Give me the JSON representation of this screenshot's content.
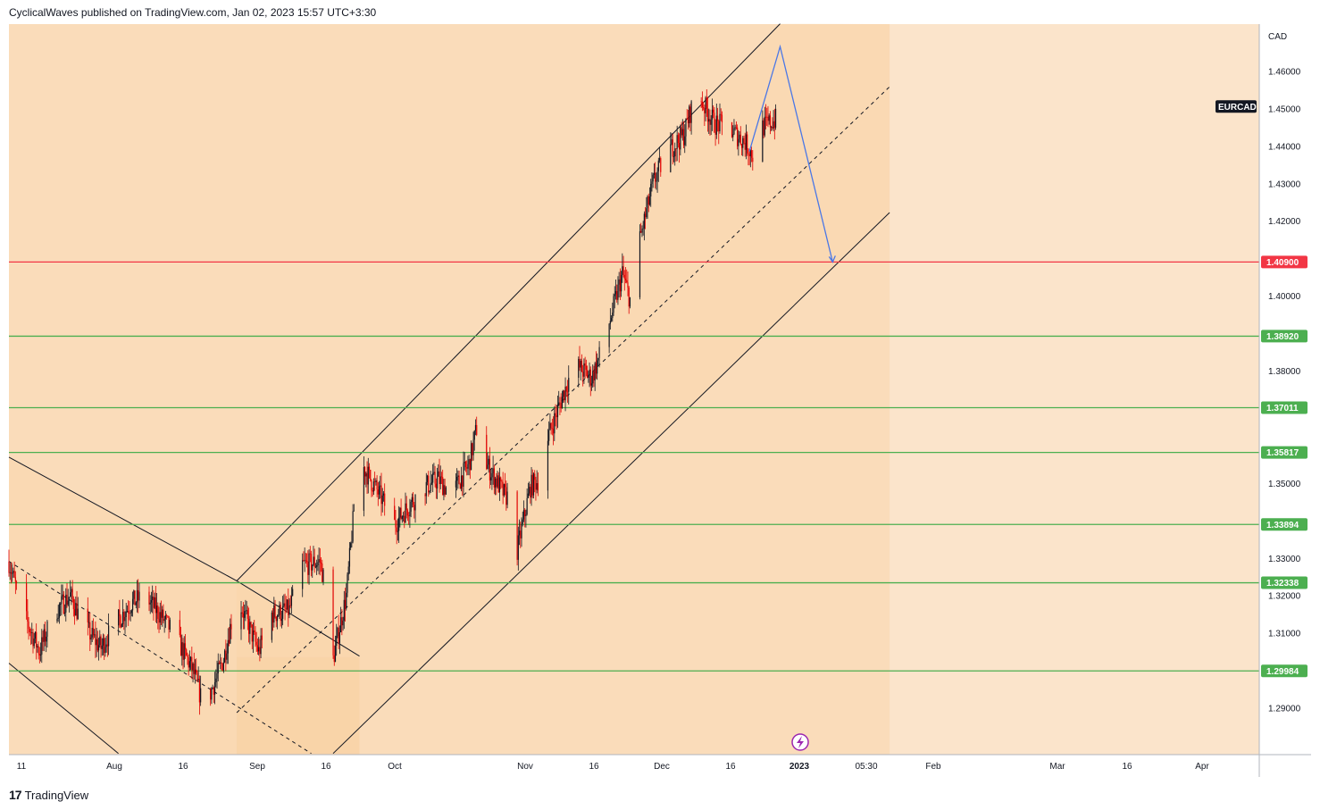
{
  "header": {
    "published": "CyclicalWaves published on TradingView.com, Jan 02, 2023 15:57 UTC+3:30"
  },
  "footer": {
    "logo": "17",
    "brand": "TradingView"
  },
  "colors": {
    "background": "#fbe4cb",
    "shading": "#f9d3a7",
    "red_line": "#f23645",
    "green_line": "#4caf50",
    "candle_up": "#131722",
    "candle_down": "#e00000",
    "projection": "#4a77e6"
  },
  "chart_data": {
    "type": "candlestick",
    "symbol": "EURCAD",
    "currency": "CAD",
    "x_ticks": [
      "11",
      "Aug",
      "16",
      "Sep",
      "16",
      "Oct",
      "Nov",
      "16",
      "Dec",
      "16",
      "2023",
      "05:30",
      "Feb",
      "Mar",
      "16",
      "Apr"
    ],
    "y_ticks": [
      1.29,
      1.31,
      1.32,
      1.33,
      1.35,
      1.38,
      1.4,
      1.42,
      1.43,
      1.44,
      1.45,
      1.46
    ],
    "y_range": [
      1.2775,
      1.4725
    ],
    "horizontal_levels": [
      {
        "value": 1.409,
        "label": "1.40900",
        "color": "red"
      },
      {
        "value": 1.3892,
        "label": "1.38920",
        "color": "green"
      },
      {
        "value": 1.37011,
        "label": "1.37011",
        "color": "green"
      },
      {
        "value": 1.35817,
        "label": "1.35817",
        "color": "green"
      },
      {
        "value": 1.33894,
        "label": "1.33894",
        "color": "green"
      },
      {
        "value": 1.32338,
        "label": "1.32338",
        "color": "green"
      },
      {
        "value": 1.29984,
        "label": "1.29984",
        "color": "green"
      }
    ],
    "price_path": [
      {
        "t": "Jul 11",
        "p": 1.329
      },
      {
        "t": "Jul 14",
        "p": 1.316
      },
      {
        "t": "Jul 18",
        "p": 1.305
      },
      {
        "t": "Jul 21",
        "p": 1.315
      },
      {
        "t": "Jul 25",
        "p": 1.32
      },
      {
        "t": "Jul 28",
        "p": 1.312
      },
      {
        "t": "Aug 01",
        "p": 1.306
      },
      {
        "t": "Aug 04",
        "p": 1.312
      },
      {
        "t": "Aug 08",
        "p": 1.318
      },
      {
        "t": "Aug 11",
        "p": 1.32
      },
      {
        "t": "Aug 15",
        "p": 1.314
      },
      {
        "t": "Aug 18",
        "p": 1.309
      },
      {
        "t": "Aug 22",
        "p": 1.3
      },
      {
        "t": "Aug 24",
        "p": 1.292
      },
      {
        "t": "Aug 26",
        "p": 1.294
      },
      {
        "t": "Aug 29",
        "p": 1.303
      },
      {
        "t": "Sep 01",
        "p": 1.32
      },
      {
        "t": "Sep 06",
        "p": 1.305
      },
      {
        "t": "Sep 09",
        "p": 1.315
      },
      {
        "t": "Sep 13",
        "p": 1.316
      },
      {
        "t": "Sep 16",
        "p": 1.328
      },
      {
        "t": "Sep 20",
        "p": 1.329
      },
      {
        "t": "Sep 22",
        "p": 1.318
      },
      {
        "t": "Sep 23",
        "p": 1.303
      },
      {
        "t": "Sep 26",
        "p": 1.32
      },
      {
        "t": "Sep 28",
        "p": 1.346
      },
      {
        "t": "Sep 30",
        "p": 1.354
      },
      {
        "t": "Oct 04",
        "p": 1.346
      },
      {
        "t": "Oct 07",
        "p": 1.339
      },
      {
        "t": "Oct 11",
        "p": 1.345
      },
      {
        "t": "Oct 14",
        "p": 1.349
      },
      {
        "t": "Oct 17",
        "p": 1.351
      },
      {
        "t": "Oct 20",
        "p": 1.347
      },
      {
        "t": "Oct 24",
        "p": 1.355
      },
      {
        "t": "Oct 26",
        "p": 1.366
      },
      {
        "t": "Oct 28",
        "p": 1.355
      },
      {
        "t": "Nov 01",
        "p": 1.347
      },
      {
        "t": "Nov 03",
        "p": 1.345
      },
      {
        "t": "Nov 04",
        "p": 1.332
      },
      {
        "t": "Nov 07",
        "p": 1.349
      },
      {
        "t": "Nov 10",
        "p": 1.352
      },
      {
        "t": "Nov 11",
        "p": 1.362
      },
      {
        "t": "Nov 14",
        "p": 1.372
      },
      {
        "t": "Nov 17",
        "p": 1.382
      },
      {
        "t": "Nov 21",
        "p": 1.378
      },
      {
        "t": "Nov 24",
        "p": 1.388
      },
      {
        "t": "Nov 28",
        "p": 1.406
      },
      {
        "t": "Nov 30",
        "p": 1.398
      },
      {
        "t": "Dec 02",
        "p": 1.415
      },
      {
        "t": "Dec 05",
        "p": 1.43
      },
      {
        "t": "Dec 08",
        "p": 1.438
      },
      {
        "t": "Dec 12",
        "p": 1.443
      },
      {
        "t": "Dec 15",
        "p": 1.455
      },
      {
        "t": "Dec 16",
        "p": 1.452
      },
      {
        "t": "Dec 19",
        "p": 1.446
      },
      {
        "t": "Dec 22",
        "p": 1.445
      },
      {
        "t": "Dec 26",
        "p": 1.441
      },
      {
        "t": "Dec 28",
        "p": 1.437
      },
      {
        "t": "Dec 30",
        "p": 1.445
      },
      {
        "t": "Jan 02",
        "p": 1.447
      }
    ],
    "channel_upper": [
      {
        "t": "Sep 01",
        "p": 1.3239
      },
      {
        "t": "Jan 03",
        "p": 1.4726
      }
    ],
    "channel_middle": [
      {
        "t": "Sep 01",
        "p": 1.2887
      },
      {
        "t": "Jan 28",
        "p": 1.4558
      }
    ],
    "channel_lower": [
      {
        "t": "Sep 23",
        "p": 1.2778
      },
      {
        "t": "Jan 28",
        "p": 1.4222
      }
    ],
    "old_channel_upper": [
      {
        "t": "Jul 11",
        "p": 1.3569
      },
      {
        "t": "Sep 01",
        "p": 1.3239
      },
      {
        "t": "Sep 29",
        "p": 1.3038
      }
    ],
    "old_channel_middle": [
      {
        "t": "Jul 11",
        "p": 1.3291
      },
      {
        "t": "Sep 18",
        "p": 1.2778
      }
    ],
    "old_channel_lower": [
      {
        "t": "Jul 11",
        "p": 1.3019
      },
      {
        "t": "Aug 05",
        "p": 1.2778
      }
    ],
    "projection": [
      {
        "t": "Dec 27",
        "p": 1.4385
      },
      {
        "t": "Jan 03",
        "p": 1.4665
      },
      {
        "t": "Jan 15",
        "p": 1.409
      }
    ]
  }
}
